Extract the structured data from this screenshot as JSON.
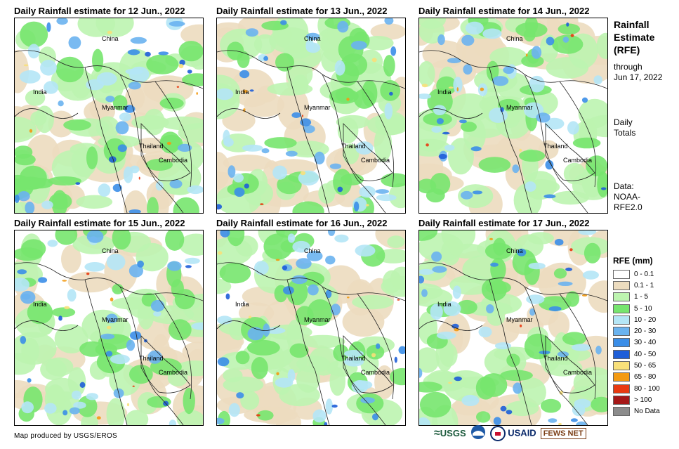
{
  "panels": [
    {
      "title": "Daily Rainfall estimate for 12 Jun., 2022"
    },
    {
      "title": "Daily Rainfall estimate for 13 Jun., 2022"
    },
    {
      "title": "Daily Rainfall estimate for 14 Jun., 2022"
    },
    {
      "title": "Daily Rainfall estimate for 15 Jun., 2022"
    },
    {
      "title": "Daily Rainfall estimate for 16 Jun., 2022"
    },
    {
      "title": "Daily Rainfall estimate for 17 Jun., 2022"
    }
  ],
  "places": {
    "china": "China",
    "india": "India",
    "myanmar": "Myanmar",
    "thailand": "Thailand",
    "cambodia": "Cambodia"
  },
  "sidebar": {
    "title_line1": "Rainfall",
    "title_line2": "Estimate",
    "title_line3": "(RFE)",
    "through": "through",
    "date": "Jun 17, 2022",
    "daily": "Daily",
    "totals": "Totals",
    "data_label": "Data:",
    "data_source1": "NOAA-",
    "data_source2": "RFE2.0"
  },
  "legend": {
    "title": "RFE (mm)",
    "items": [
      {
        "label": "0 - 0.1",
        "color": "#ffffff"
      },
      {
        "label": "0.1 - 1",
        "color": "#ecdcbf"
      },
      {
        "label": "1 - 5",
        "color": "#bdf4b0"
      },
      {
        "label": "5 - 10",
        "color": "#77e56e"
      },
      {
        "label": "10 - 20",
        "color": "#b4e6f6"
      },
      {
        "label": "20 - 30",
        "color": "#6ab3ef"
      },
      {
        "label": "30 - 40",
        "color": "#3b8ee8"
      },
      {
        "label": "40 - 50",
        "color": "#1e5ed8"
      },
      {
        "label": "50 - 65",
        "color": "#f8e07a"
      },
      {
        "label": "65 - 80",
        "color": "#f39a12"
      },
      {
        "label": "80 - 100",
        "color": "#e83a10"
      },
      {
        "label": "> 100",
        "color": "#a51818"
      },
      {
        "label": "No Data",
        "color": "#8c8c8c"
      }
    ]
  },
  "footer": {
    "credit": "Map produced by USGS/EROS",
    "logo_usgs": "USGS",
    "logo_usaid": "USAID",
    "logo_fewsnet": "FEWS NET"
  }
}
